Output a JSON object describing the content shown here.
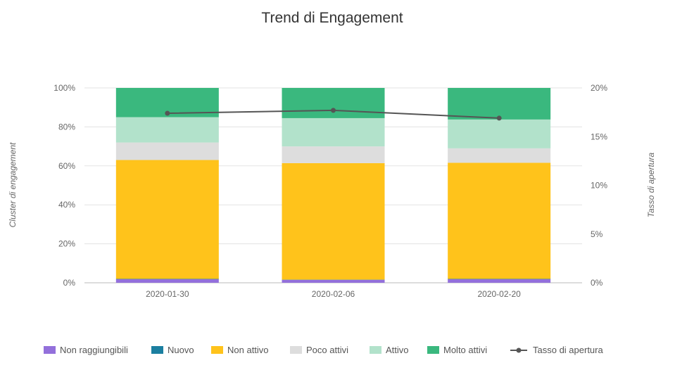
{
  "chart_data": {
    "type": "bar",
    "stacked": true,
    "title": "Trend di Engagement",
    "categories": [
      "2020-01-30",
      "2020-02-06",
      "2020-02-20"
    ],
    "ylabel": "Cluster di engagement",
    "y2label": "Tasso di apertura",
    "ylim": [
      0,
      100
    ],
    "y2lim": [
      0,
      20
    ],
    "y_ticks": [
      {
        "value": 0,
        "label": "0%"
      },
      {
        "value": 20,
        "label": "20%"
      },
      {
        "value": 40,
        "label": "40%"
      },
      {
        "value": 60,
        "label": "60%"
      },
      {
        "value": 80,
        "label": "80%"
      },
      {
        "value": 100,
        "label": "100%"
      }
    ],
    "y2_ticks": [
      {
        "value": 0,
        "label": "0%"
      },
      {
        "value": 5,
        "label": "5%"
      },
      {
        "value": 10,
        "label": "10%"
      },
      {
        "value": 15,
        "label": "15%"
      },
      {
        "value": 20,
        "label": "20%"
      }
    ],
    "grid": true,
    "legend_position": "bottom",
    "series": [
      {
        "name": "Non raggiungibili",
        "color": "#9370db",
        "values": [
          1.8,
          1.5,
          1.8
        ]
      },
      {
        "name": "Nuovo",
        "color": "#1b7fa0",
        "values": [
          0.2,
          0.1,
          0.2
        ]
      },
      {
        "name": "Non attivo",
        "color": "#ffc31b",
        "values": [
          61,
          59.8,
          59.6
        ]
      },
      {
        "name": "Poco attivi",
        "color": "#dddddd",
        "values": [
          9,
          8.6,
          7.4
        ]
      },
      {
        "name": "Attivo",
        "color": "#b2e2cb",
        "values": [
          13,
          14.5,
          14.8
        ]
      },
      {
        "name": "Molto attivi",
        "color": "#3ab87e",
        "values": [
          15,
          15.5,
          16.2
        ]
      }
    ],
    "line_series": {
      "name": "Tasso di apertura",
      "axis": "right",
      "color": "#555555",
      "values": [
        17.4,
        17.7,
        16.9
      ]
    }
  }
}
